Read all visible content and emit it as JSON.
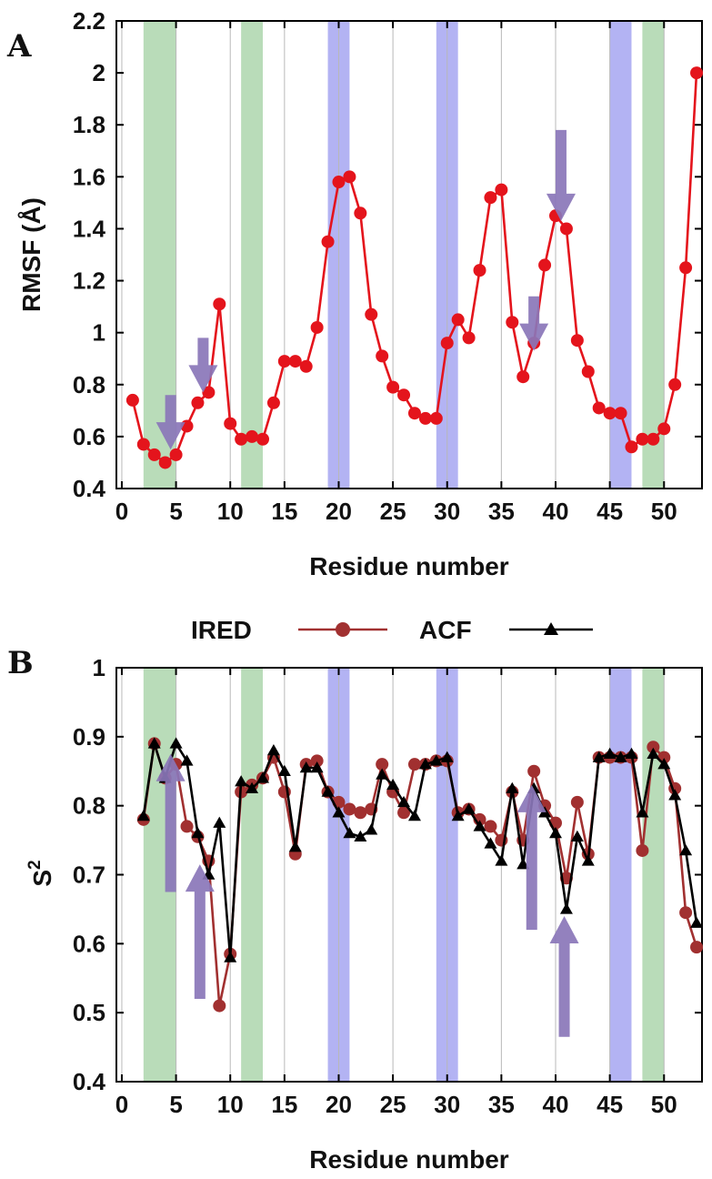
{
  "chart_data": [
    {
      "id": "A",
      "panel_label": "A",
      "type": "line",
      "xlabel": "Residue number",
      "ylabel": "RMSF (Å)",
      "xlim": [
        -0.5,
        53.5
      ],
      "ylim": [
        0.4,
        2.2
      ],
      "x_ticks": [
        0,
        5,
        10,
        15,
        20,
        25,
        30,
        35,
        40,
        45,
        50
      ],
      "x_tick_labels": [
        "0",
        "5",
        "10",
        "15",
        "20",
        "25",
        "30",
        "35",
        "40",
        "45",
        "50"
      ],
      "y_ticks": [
        0.4,
        0.6,
        0.8,
        1.0,
        1.2,
        1.4,
        1.6,
        1.8,
        2.0,
        2.2
      ],
      "y_tick_labels": [
        "0.4",
        "0.6",
        "0.8",
        "1",
        "1.2",
        "1.4",
        "1.6",
        "1.8",
        "2",
        "2.2"
      ],
      "grid": "vertical",
      "shaded_bands": [
        {
          "start": 2,
          "end": 5,
          "color": "#b9dcb9"
        },
        {
          "start": 11,
          "end": 13,
          "color": "#b9dcb9"
        },
        {
          "start": 19,
          "end": 21,
          "color": "#b3b3f3"
        },
        {
          "start": 29,
          "end": 31,
          "color": "#b3b3f3"
        },
        {
          "start": 45,
          "end": 47,
          "color": "#b3b3f3"
        },
        {
          "start": 48,
          "end": 50,
          "color": "#b9dcb9"
        }
      ],
      "series": [
        {
          "name": "RMSF",
          "color": "#e4141c",
          "marker": "circle",
          "x": [
            1,
            2,
            3,
            4,
            5,
            6,
            7,
            8,
            9,
            10,
            11,
            12,
            13,
            14,
            15,
            16,
            17,
            18,
            19,
            20,
            21,
            22,
            23,
            24,
            25,
            26,
            27,
            28,
            29,
            30,
            31,
            32,
            33,
            34,
            35,
            36,
            37,
            38,
            39,
            40,
            41,
            42,
            43,
            44,
            45,
            46,
            47,
            48,
            49,
            50,
            51,
            52,
            53
          ],
          "values": [
            0.74,
            0.57,
            0.53,
            0.5,
            0.53,
            0.64,
            0.73,
            0.77,
            1.11,
            0.65,
            0.59,
            0.6,
            0.59,
            0.73,
            0.89,
            0.89,
            0.87,
            1.02,
            1.35,
            1.58,
            1.6,
            1.46,
            1.07,
            0.91,
            0.79,
            0.76,
            0.69,
            0.67,
            0.67,
            0.96,
            1.05,
            0.98,
            1.24,
            1.52,
            1.55,
            1.04,
            0.83,
            0.96,
            1.26,
            1.45,
            1.4,
            0.97,
            0.85,
            0.71,
            0.69,
            0.69,
            0.56,
            0.59,
            0.59,
            0.63,
            0.8,
            1.25,
            2.0
          ]
        }
      ],
      "arrows": [
        {
          "x": 4.5,
          "y_from": 0.76,
          "y_to": 0.55,
          "direction": "down",
          "color": "#8a76b8"
        },
        {
          "x": 7.5,
          "y_from": 0.98,
          "y_to": 0.77,
          "direction": "down",
          "color": "#8a76b8"
        },
        {
          "x": 38,
          "y_from": 1.14,
          "y_to": 0.93,
          "direction": "down",
          "color": "#8a76b8"
        },
        {
          "x": 40.5,
          "y_from": 1.78,
          "y_to": 1.43,
          "direction": "down",
          "color": "#8a76b8"
        }
      ]
    },
    {
      "id": "B",
      "panel_label": "B",
      "type": "line",
      "xlabel": "Residue number",
      "ylabel": "S",
      "ylabel_superscript": "2",
      "xlim": [
        -0.5,
        53.5
      ],
      "ylim": [
        0.4,
        1.0
      ],
      "x_ticks": [
        0,
        5,
        10,
        15,
        20,
        25,
        30,
        35,
        40,
        45,
        50
      ],
      "x_tick_labels": [
        "0",
        "5",
        "10",
        "15",
        "20",
        "25",
        "30",
        "35",
        "40",
        "45",
        "50"
      ],
      "y_ticks": [
        0.4,
        0.5,
        0.6,
        0.7,
        0.8,
        0.9,
        1.0
      ],
      "y_tick_labels": [
        "0.4",
        "0.5",
        "0.6",
        "0.7",
        "0.8",
        "0.9",
        "1"
      ],
      "grid": "vertical",
      "shaded_bands": [
        {
          "start": 2,
          "end": 5,
          "color": "#b9dcb9"
        },
        {
          "start": 11,
          "end": 13,
          "color": "#b9dcb9"
        },
        {
          "start": 19,
          "end": 21,
          "color": "#b3b3f3"
        },
        {
          "start": 29,
          "end": 31,
          "color": "#b3b3f3"
        },
        {
          "start": 45,
          "end": 47,
          "color": "#b3b3f3"
        },
        {
          "start": 48,
          "end": 50,
          "color": "#b9dcb9"
        }
      ],
      "legend": {
        "placement": "above-plot",
        "entries": [
          {
            "label": "IRED",
            "series": "IRED"
          },
          {
            "label": "ACF",
            "series": "ACF"
          }
        ]
      },
      "series": [
        {
          "name": "IRED",
          "color": "#a13030",
          "marker": "circle",
          "x": [
            2,
            3,
            4,
            5,
            6,
            7,
            8,
            9,
            10,
            11,
            12,
            13,
            14,
            15,
            16,
            17,
            18,
            19,
            20,
            21,
            22,
            23,
            24,
            25,
            26,
            27,
            28,
            29,
            30,
            31,
            32,
            33,
            34,
            35,
            36,
            37,
            38,
            39,
            40,
            41,
            42,
            43,
            44,
            45,
            46,
            47,
            48,
            49,
            50,
            51,
            52,
            53
          ],
          "values": [
            0.78,
            0.89,
            0.84,
            0.86,
            0.77,
            0.755,
            0.72,
            0.51,
            0.585,
            0.82,
            0.83,
            0.84,
            0.87,
            0.82,
            0.73,
            0.86,
            0.865,
            0.82,
            0.805,
            0.795,
            0.79,
            0.795,
            0.86,
            0.82,
            0.79,
            0.86,
            0.86,
            0.865,
            0.865,
            0.79,
            0.795,
            0.78,
            0.77,
            0.75,
            0.82,
            0.75,
            0.85,
            0.8,
            0.775,
            0.695,
            0.805,
            0.73,
            0.87,
            0.87,
            0.87,
            0.87,
            0.735,
            0.885,
            0.87,
            0.825,
            0.645,
            0.595
          ]
        },
        {
          "name": "ACF",
          "color": "#000000",
          "marker": "triangle",
          "x": [
            2,
            3,
            4,
            5,
            6,
            7,
            8,
            9,
            10,
            11,
            12,
            13,
            14,
            15,
            16,
            17,
            18,
            19,
            20,
            21,
            22,
            23,
            24,
            25,
            26,
            27,
            28,
            29,
            30,
            31,
            32,
            33,
            34,
            35,
            36,
            37,
            38,
            39,
            40,
            41,
            42,
            43,
            44,
            45,
            46,
            47,
            48,
            49,
            50,
            51,
            52,
            53
          ],
          "values": [
            0.785,
            0.89,
            0.84,
            0.89,
            0.865,
            0.76,
            0.7,
            0.775,
            0.58,
            0.835,
            0.825,
            0.84,
            0.88,
            0.85,
            0.74,
            0.855,
            0.855,
            0.82,
            0.79,
            0.76,
            0.755,
            0.765,
            0.845,
            0.83,
            0.805,
            0.785,
            0.86,
            0.865,
            0.87,
            0.785,
            0.795,
            0.77,
            0.745,
            0.72,
            0.825,
            0.715,
            0.825,
            0.79,
            0.76,
            0.65,
            0.755,
            0.72,
            0.87,
            0.875,
            0.87,
            0.875,
            0.79,
            0.875,
            0.86,
            0.815,
            0.735,
            0.63
          ]
        }
      ],
      "arrows": [
        {
          "x": 4.5,
          "y_from": 0.675,
          "y_to": 0.875,
          "direction": "up",
          "color": "#8a76b8"
        },
        {
          "x": 7.2,
          "y_from": 0.52,
          "y_to": 0.715,
          "direction": "up",
          "color": "#8a76b8"
        },
        {
          "x": 37.8,
          "y_from": 0.62,
          "y_to": 0.83,
          "direction": "up",
          "color": "#8a76b8"
        },
        {
          "x": 40.8,
          "y_from": 0.465,
          "y_to": 0.64,
          "direction": "up",
          "color": "#8a76b8"
        }
      ]
    }
  ]
}
